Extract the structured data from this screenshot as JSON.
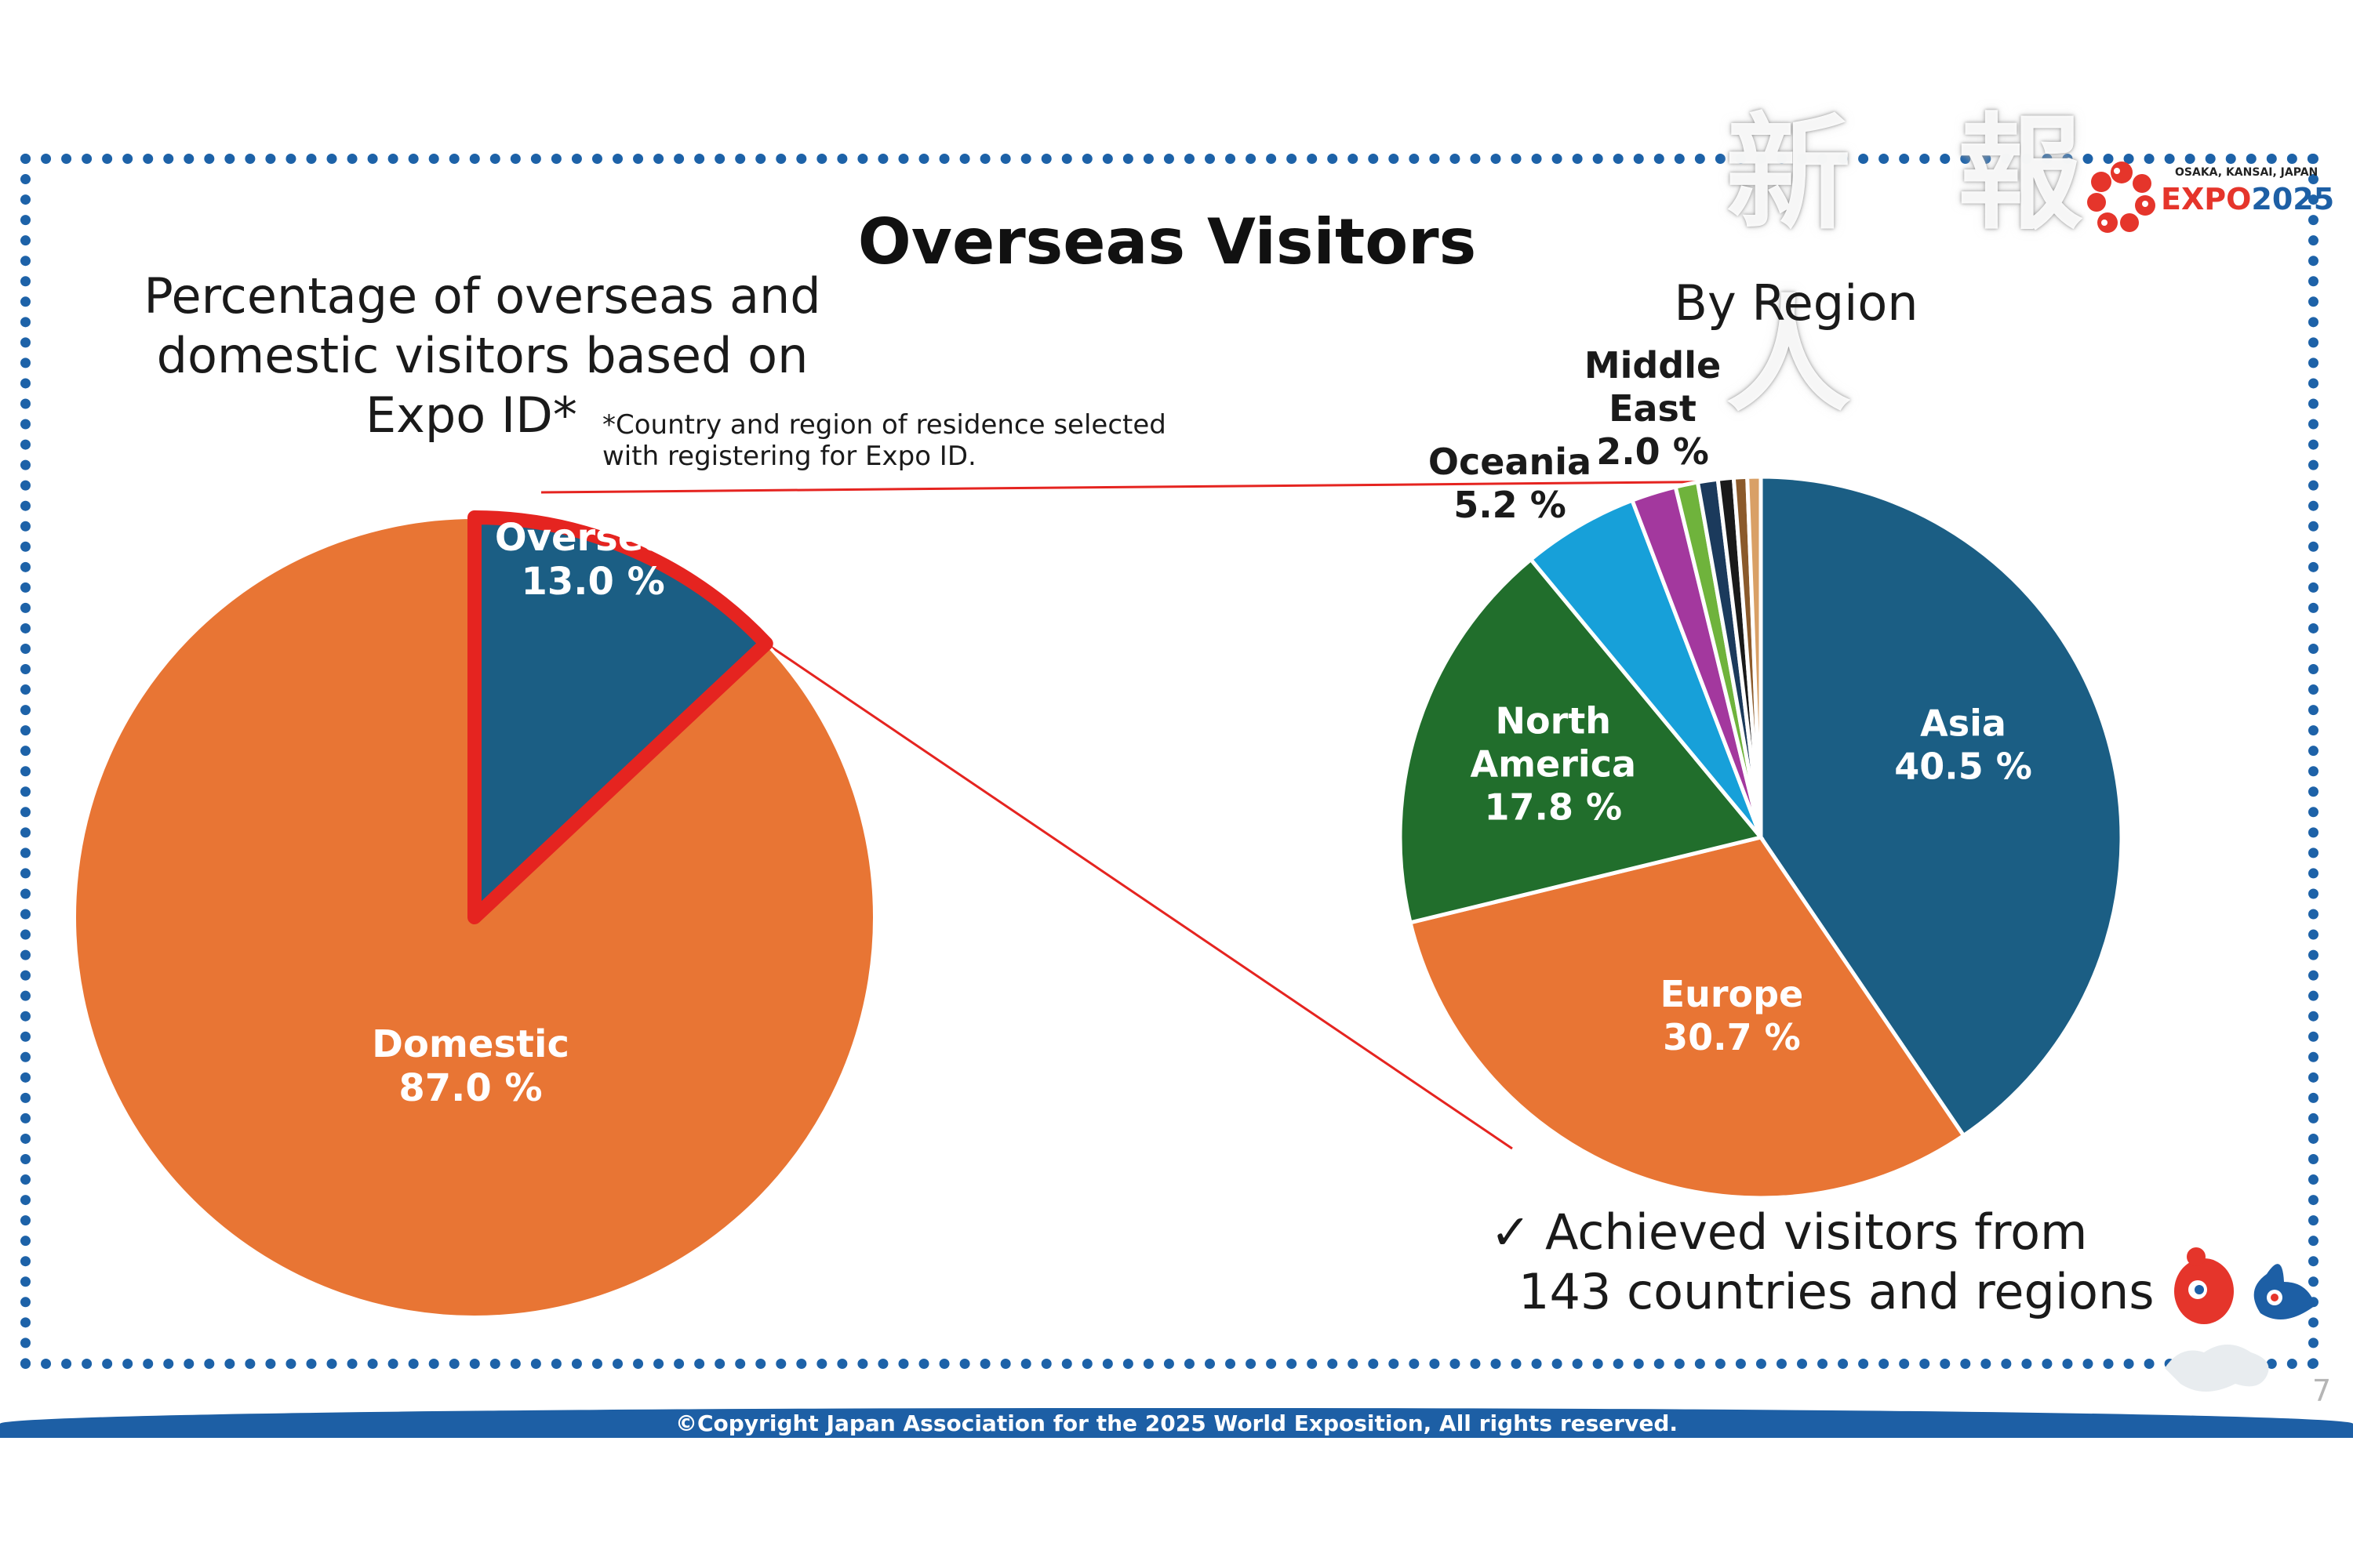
{
  "header": {
    "title": "Overseas Visitors",
    "subtitle_lines": [
      "Percentage of overseas and",
      "domestic visitors based on",
      "Expo ID*"
    ],
    "footnote_lines": [
      "*Country and region of residence selected",
      "with registering for Expo ID."
    ],
    "region_title": "By Region"
  },
  "watermark": {
    "text": "新 報 人"
  },
  "logo": {
    "small_text": "OSAKA, KANSAI, JAPAN",
    "expo_text": "EXPO",
    "year_text": "2025"
  },
  "note": {
    "check": "✓",
    "lines": [
      "Achieved visitors from",
      "143 countries and regions"
    ]
  },
  "footer": {
    "copyright": "©Copyright Japan Association for the 2025 World Exposition, All rights reserved.",
    "page_number": "7"
  },
  "colors": {
    "overseas": "#1b5e84",
    "domestic": "#e87534",
    "asia": "#1b5e84",
    "europe": "#e87534",
    "north_america": "#216e2c",
    "oceania": "#17a0d9",
    "middle_east": "#a3389e",
    "highlight": "#e52420",
    "frame": "#1d62a8"
  },
  "chart_data": [
    {
      "type": "pie",
      "title": "Percentage of overseas and domestic visitors based on Expo ID*",
      "slices": [
        {
          "name": "Overseas",
          "value": 13.0,
          "label": "13.0 %",
          "color": "#1b5e84"
        },
        {
          "name": "Domestic",
          "value": 87.0,
          "label": "87.0 %",
          "color": "#e87534"
        }
      ]
    },
    {
      "type": "pie",
      "title": "By Region",
      "slices": [
        {
          "name": "Asia",
          "value": 40.5,
          "label": "40.5 %",
          "color": "#1b5e84"
        },
        {
          "name": "Europe",
          "value": 30.7,
          "label": "30.7 %",
          "color": "#e87534"
        },
        {
          "name": "North America",
          "value": 17.8,
          "label": "17.8 %",
          "color": "#216e2c"
        },
        {
          "name": "Oceania",
          "value": 5.2,
          "label": "5.2 %",
          "color": "#17a0d9"
        },
        {
          "name": "Middle East",
          "value": 2.0,
          "label": "2.0 %",
          "color": "#a3389e"
        },
        {
          "value": 1.0,
          "color": "#6fb33c"
        },
        {
          "value": 0.9,
          "color": "#1b3a5c"
        },
        {
          "value": 0.7,
          "color": "#1a1a1a"
        },
        {
          "value": 0.6,
          "color": "#8b5a2b"
        },
        {
          "value": 0.6,
          "color": "#d9a066"
        }
      ]
    }
  ]
}
